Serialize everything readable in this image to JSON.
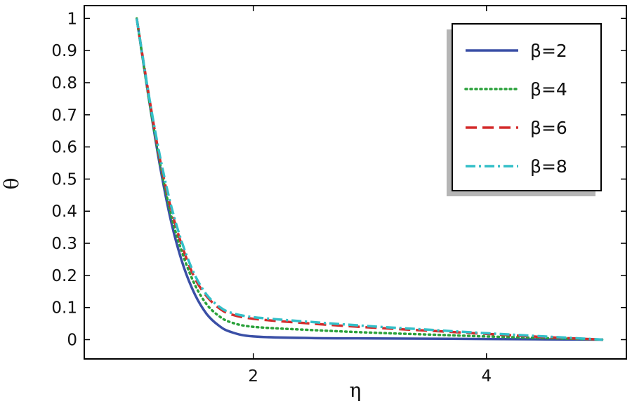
{
  "chart_data": {
    "type": "line",
    "xlabel": "η",
    "ylabel": "θ",
    "xlim": [
      0.55,
      5.2
    ],
    "ylim": [
      -0.06,
      1.04
    ],
    "xticks": [
      2,
      4
    ],
    "yticks": [
      0,
      0.1,
      0.2,
      0.3,
      0.4,
      0.5,
      0.6,
      0.7,
      0.8,
      0.9,
      1
    ],
    "ytick_labels": [
      "0",
      "0.1",
      "0.2",
      "0.3",
      "0.4",
      "0.5",
      "0.6",
      "0.7",
      "0.8",
      "0.9",
      "1"
    ],
    "xtick_labels": [
      "2",
      "4"
    ],
    "grid": false,
    "legend_position": "top-right",
    "series": [
      {
        "name": "β=2",
        "color": "#3a4fa6",
        "dash": "solid",
        "x": [
          1.0,
          1.1,
          1.2,
          1.3,
          1.4,
          1.5,
          1.6,
          1.7,
          1.8,
          2.0,
          2.5,
          3.0,
          3.5,
          4.0,
          4.5,
          5.0
        ],
        "y": [
          1.0,
          0.76,
          0.54,
          0.36,
          0.23,
          0.14,
          0.08,
          0.045,
          0.025,
          0.01,
          0.005,
          0.004,
          0.003,
          0.002,
          0.001,
          0.0
        ]
      },
      {
        "name": "β=4",
        "color": "#2aa13a",
        "dash": "dotted",
        "x": [
          1.0,
          1.1,
          1.2,
          1.3,
          1.4,
          1.5,
          1.6,
          1.7,
          1.8,
          2.0,
          2.5,
          3.0,
          3.5,
          4.0,
          4.5,
          5.0
        ],
        "y": [
          1.0,
          0.76,
          0.55,
          0.38,
          0.26,
          0.17,
          0.11,
          0.075,
          0.055,
          0.04,
          0.03,
          0.022,
          0.016,
          0.01,
          0.005,
          0.0
        ]
      },
      {
        "name": "β=6",
        "color": "#d42a2a",
        "dash": "dashed",
        "x": [
          1.0,
          1.1,
          1.2,
          1.3,
          1.4,
          1.5,
          1.6,
          1.7,
          1.8,
          2.0,
          2.5,
          3.0,
          3.5,
          4.0,
          4.5,
          5.0
        ],
        "y": [
          1.0,
          0.77,
          0.56,
          0.4,
          0.28,
          0.19,
          0.135,
          0.1,
          0.08,
          0.065,
          0.05,
          0.038,
          0.028,
          0.018,
          0.008,
          0.0
        ]
      },
      {
        "name": "β=8",
        "color": "#33bfc8",
        "dash": "dashdot",
        "x": [
          1.0,
          1.1,
          1.2,
          1.3,
          1.4,
          1.5,
          1.6,
          1.7,
          1.8,
          2.0,
          2.5,
          3.0,
          3.5,
          4.0,
          4.5,
          5.0
        ],
        "y": [
          1.0,
          0.77,
          0.57,
          0.41,
          0.29,
          0.2,
          0.14,
          0.105,
          0.085,
          0.07,
          0.055,
          0.042,
          0.031,
          0.02,
          0.01,
          0.0
        ]
      }
    ]
  }
}
